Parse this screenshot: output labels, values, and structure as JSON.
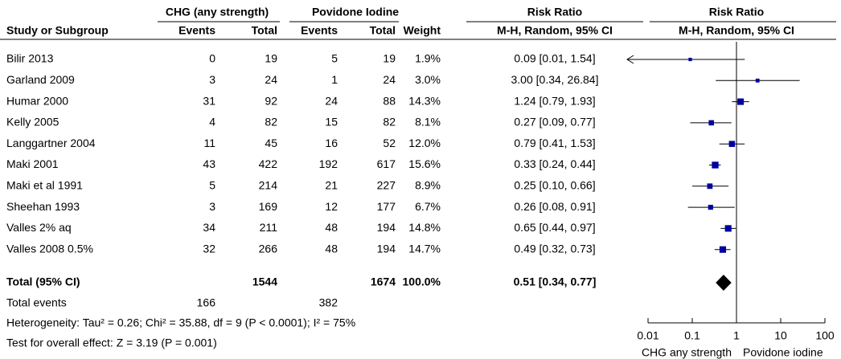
{
  "chart_data": {
    "type": "forest",
    "headers": {
      "group1": "CHG (any strength)",
      "group2": "Povidone Iodine",
      "rr1": "Risk Ratio",
      "rr2": "Risk Ratio",
      "study": "Study or Subgroup",
      "events1": "Events",
      "total1": "Total",
      "events2": "Events",
      "total2": "Total",
      "weight": "Weight",
      "method1": "M-H, Random, 95% CI",
      "method2": "M-H, Random, 95% CI"
    },
    "studies": [
      {
        "name": "Bilir 2013",
        "events1": 0,
        "total1": 19,
        "events2": 5,
        "total2": 19,
        "weight": 1.9,
        "weight_label": "1.9%",
        "rr": 0.09,
        "lo": 0.01,
        "hi": 1.54,
        "ci_label": "0.09 [0.01, 1.54]"
      },
      {
        "name": "Garland 2009",
        "events1": 3,
        "total1": 24,
        "events2": 1,
        "total2": 24,
        "weight": 3.0,
        "weight_label": "3.0%",
        "rr": 3.0,
        "lo": 0.34,
        "hi": 26.84,
        "ci_label": "3.00 [0.34, 26.84]"
      },
      {
        "name": "Humar 2000",
        "events1": 31,
        "total1": 92,
        "events2": 24,
        "total2": 88,
        "weight": 14.3,
        "weight_label": "14.3%",
        "rr": 1.24,
        "lo": 0.79,
        "hi": 1.93,
        "ci_label": "1.24 [0.79, 1.93]"
      },
      {
        "name": "Kelly 2005",
        "events1": 4,
        "total1": 82,
        "events2": 15,
        "total2": 82,
        "weight": 8.1,
        "weight_label": "8.1%",
        "rr": 0.27,
        "lo": 0.09,
        "hi": 0.77,
        "ci_label": "0.27 [0.09, 0.77]"
      },
      {
        "name": "Langgartner 2004",
        "events1": 11,
        "total1": 45,
        "events2": 16,
        "total2": 52,
        "weight": 12.0,
        "weight_label": "12.0%",
        "rr": 0.79,
        "lo": 0.41,
        "hi": 1.53,
        "ci_label": "0.79 [0.41, 1.53]"
      },
      {
        "name": "Maki 2001",
        "events1": 43,
        "total1": 422,
        "events2": 192,
        "total2": 617,
        "weight": 15.6,
        "weight_label": "15.6%",
        "rr": 0.33,
        "lo": 0.24,
        "hi": 0.44,
        "ci_label": "0.33 [0.24, 0.44]"
      },
      {
        "name": "Maki et al 1991",
        "events1": 5,
        "total1": 214,
        "events2": 21,
        "total2": 227,
        "weight": 8.9,
        "weight_label": "8.9%",
        "rr": 0.25,
        "lo": 0.1,
        "hi": 0.66,
        "ci_label": "0.25 [0.10, 0.66]"
      },
      {
        "name": "Sheehan 1993",
        "events1": 3,
        "total1": 169,
        "events2": 12,
        "total2": 177,
        "weight": 6.7,
        "weight_label": "6.7%",
        "rr": 0.26,
        "lo": 0.08,
        "hi": 0.91,
        "ci_label": "0.26 [0.08, 0.91]"
      },
      {
        "name": "Valles 2% aq",
        "events1": 34,
        "total1": 211,
        "events2": 48,
        "total2": 194,
        "weight": 14.8,
        "weight_label": "14.8%",
        "rr": 0.65,
        "lo": 0.44,
        "hi": 0.97,
        "ci_label": "0.65 [0.44, 0.97]"
      },
      {
        "name": "Valles 2008 0.5%",
        "events1": 32,
        "total1": 266,
        "events2": 48,
        "total2": 194,
        "weight": 14.7,
        "weight_label": "14.7%",
        "rr": 0.49,
        "lo": 0.32,
        "hi": 0.73,
        "ci_label": "0.49 [0.32, 0.73]"
      }
    ],
    "total": {
      "name": "Total (95% CI)",
      "total1": 1544,
      "total2": 1674,
      "weight": 100.0,
      "weight_label": "100.0%",
      "rr": 0.51,
      "lo": 0.34,
      "hi": 0.77,
      "ci_label": "0.51 [0.34, 0.77]"
    },
    "total_events": {
      "name": "Total events",
      "events1": 166,
      "events2": 382
    },
    "heterogeneity": "Heterogeneity: Tau² = 0.26; Chi² = 35.88, df = 9 (P < 0.0001); I² = 75%",
    "overall": "Test for overall effect: Z = 3.19 (P = 0.001)",
    "log": true,
    "xlim": [
      0.01,
      100
    ],
    "xticks": [
      0.01,
      0.1,
      1,
      10,
      100
    ],
    "x_labels": [
      "CHG any strength",
      "Povidone iodine"
    ],
    "color": "#0000a0"
  }
}
